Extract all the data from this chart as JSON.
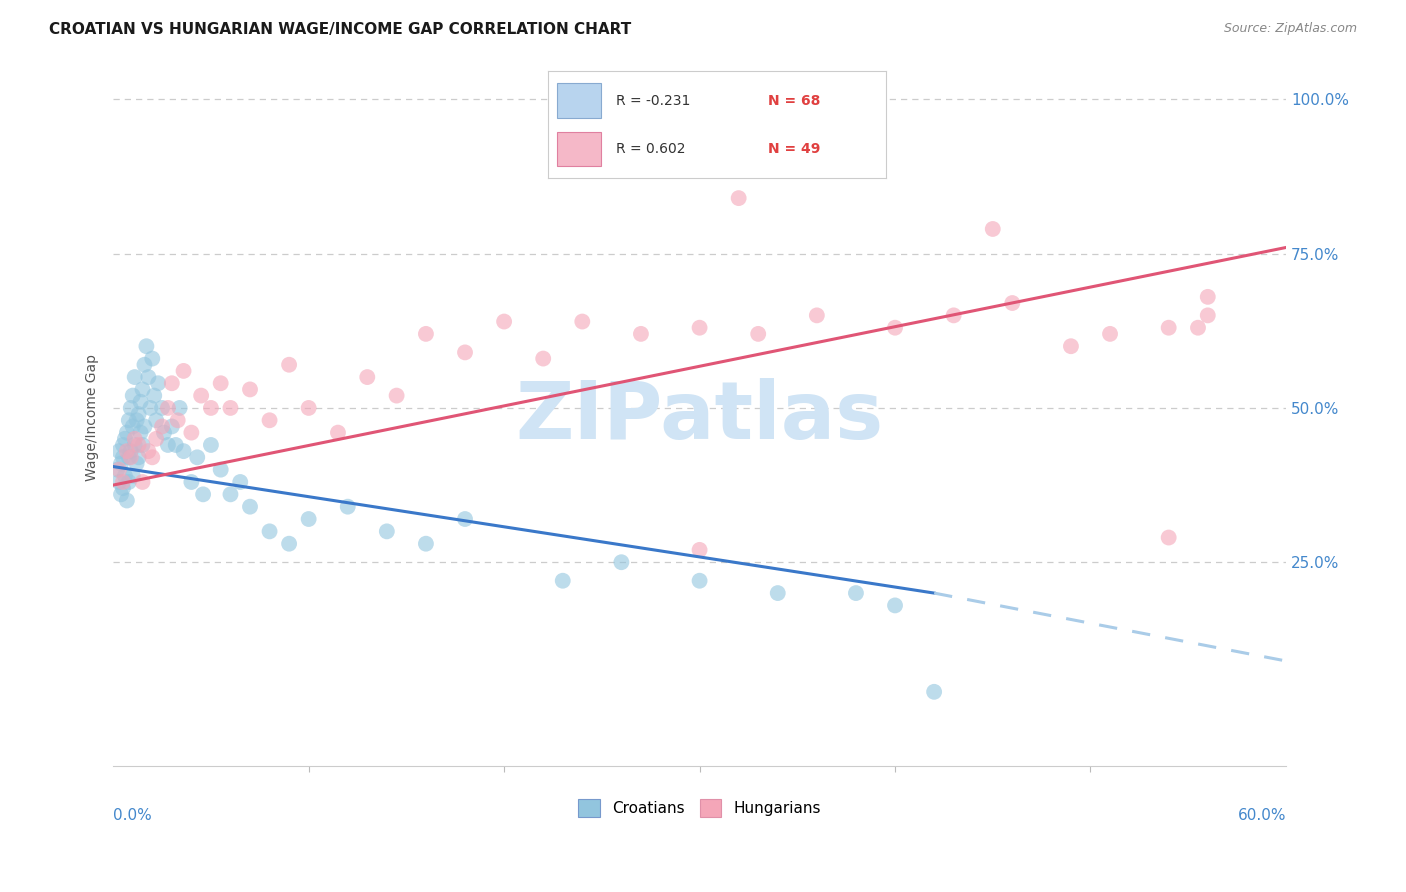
{
  "title": "CROATIAN VS HUNGARIAN WAGE/INCOME GAP CORRELATION CHART",
  "source": "Source: ZipAtlas.com",
  "ylabel": "Wage/Income Gap",
  "xmin": 0.0,
  "xmax": 0.6,
  "ymin": -0.08,
  "ymax": 1.05,
  "croatian_color": "#92c5de",
  "hungarian_color": "#f4a6b8",
  "trendline_croatian_solid_color": "#3a78c9",
  "trendline_croatian_dashed_color": "#aacce8",
  "trendline_hungarian_color": "#e05575",
  "watermark": "ZIPatlas",
  "watermark_color": "#d0e4f5",
  "legend_R_color": "#333333",
  "legend_N_color": "#e05040",
  "legend_box_color": "#cccccc",
  "tick_color": "#4488cc",
  "grid_color": "#cccccc",
  "background_color": "#ffffff",
  "title_fontsize": 11,
  "source_fontsize": 9,
  "tick_fontsize": 11,
  "ylabel_fontsize": 10,
  "cr_trend_x0": 0.0,
  "cr_trend_y0": 0.405,
  "cr_trend_x1": 0.42,
  "cr_trend_y1": 0.2,
  "cr_trend_dash_x1": 0.6,
  "cr_trend_dash_y1": 0.09,
  "hu_trend_x0": 0.0,
  "hu_trend_y0": 0.375,
  "hu_trend_x1": 0.6,
  "hu_trend_y1": 0.76
}
